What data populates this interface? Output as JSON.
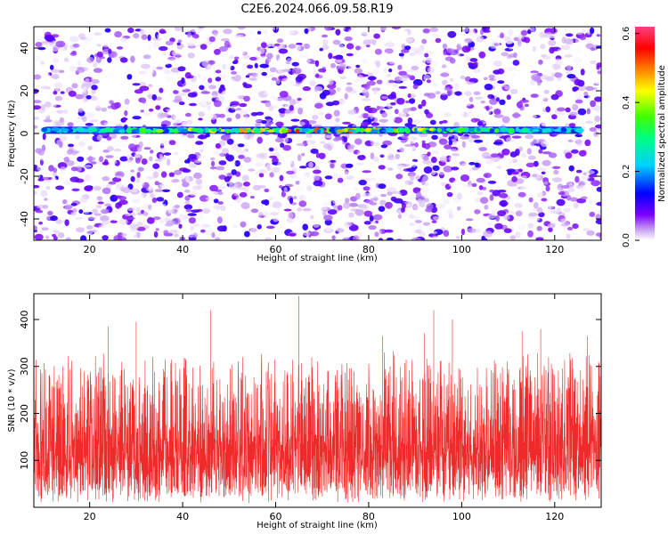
{
  "title": "C2E6.2024.066.09.58.R19",
  "chart_data": [
    {
      "type": "heatmap",
      "xlabel": "Height of straight line (km)",
      "ylabel": "Frequency (Hz)",
      "xlim": [
        8,
        130
      ],
      "ylim": [
        -50,
        50
      ],
      "x_ticks": [
        20,
        40,
        60,
        80,
        100,
        120
      ],
      "y_ticks": [
        -40,
        -20,
        0,
        20,
        40
      ],
      "colorbar": {
        "label": "Normalized spectral amplitude",
        "range": [
          0.0,
          0.62
        ],
        "ticks": [
          0.0,
          0.2,
          0.4,
          0.6
        ],
        "tick_labels": [
          "0.0",
          "0.2",
          "0.4",
          "0.6"
        ],
        "colormap": [
          "#ffffff",
          "#c8a0f0",
          "#7a00ff",
          "#0000ff",
          "#00d0ff",
          "#00ff7f",
          "#40ff00",
          "#ffff00",
          "#ff8000",
          "#ff0000",
          "#ff4080"
        ]
      },
      "signal_band": {
        "frequency_hz": 1.5,
        "height_km_range": [
          10,
          126
        ],
        "amplitude_range": [
          0.15,
          0.6
        ]
      },
      "background_amplitude_range": [
        0.0,
        0.12
      ]
    },
    {
      "type": "line",
      "xlabel": "Height of straight line (km)",
      "ylabel": "SNR (10 * v/v)",
      "xlim": [
        8,
        130
      ],
      "ylim": [
        0,
        455
      ],
      "x_ticks": [
        20,
        40,
        60,
        80,
        100,
        120
      ],
      "y_ticks": [
        100,
        200,
        300,
        400
      ],
      "series": [
        {
          "color": "#ee2a2a",
          "typical_range": [
            50,
            250
          ],
          "peaks": [
            {
              "x": 24,
              "y": 385
            },
            {
              "x": 30,
              "y": 395
            },
            {
              "x": 46,
              "y": 420
            },
            {
              "x": 65,
              "y": 450
            },
            {
              "x": 83,
              "y": 365
            },
            {
              "x": 92,
              "y": 370
            },
            {
              "x": 94,
              "y": 420
            },
            {
              "x": 98,
              "y": 400
            },
            {
              "x": 113,
              "y": 375
            },
            {
              "x": 117,
              "y": 380
            },
            {
              "x": 127,
              "y": 365
            }
          ]
        }
      ]
    }
  ]
}
